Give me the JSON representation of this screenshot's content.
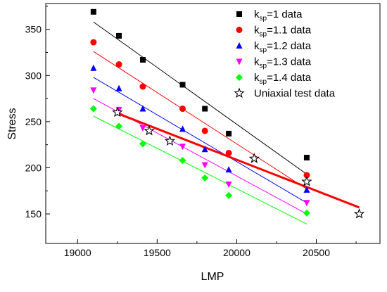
{
  "chart_data": {
    "type": "scatter",
    "xlabel": "LMP",
    "ylabel": "Stress",
    "xlim": [
      18800,
      20900
    ],
    "ylim": [
      118,
      378
    ],
    "xticks": [
      19000,
      19500,
      20000,
      20500
    ],
    "yticks": [
      150,
      200,
      250,
      300,
      350
    ],
    "grid": false,
    "legend_position": "top-right",
    "series": [
      {
        "name": "k_sp=1 data",
        "legend_main": "k",
        "legend_sub": "sp",
        "legend_rest": "=1 data",
        "marker": "square",
        "color": "#000000",
        "x": [
          19100,
          19260,
          19410,
          19660,
          19800,
          19950,
          20440
        ],
        "y": [
          369,
          343,
          317,
          290,
          264,
          237,
          211
        ],
        "fit": {
          "x": [
            19100,
            20440
          ],
          "y": [
            358,
            193
          ]
        }
      },
      {
        "name": "k_sp=1.1 data",
        "legend_main": "k",
        "legend_sub": "sp",
        "legend_rest": "=1.1 data",
        "marker": "circle",
        "color": "#ff0000",
        "x": [
          19100,
          19260,
          19410,
          19660,
          19800,
          19950,
          20440
        ],
        "y": [
          336,
          312,
          288,
          264,
          240,
          216,
          192
        ],
        "fit": {
          "x": [
            19100,
            20440
          ],
          "y": [
            326,
            177
          ]
        }
      },
      {
        "name": "k_sp=1.2 data",
        "legend_main": "k",
        "legend_sub": "sp",
        "legend_rest": "=1.2 data",
        "marker": "triangle-up",
        "color": "#0000ff",
        "x": [
          19100,
          19260,
          19410,
          19660,
          19800,
          19950,
          20440
        ],
        "y": [
          308,
          286,
          264,
          242,
          220,
          198,
          176
        ],
        "fit": {
          "x": [
            19100,
            20440
          ],
          "y": [
            298,
            162
          ]
        }
      },
      {
        "name": "k_sp=1.3 data",
        "legend_main": "k",
        "legend_sub": "sp",
        "legend_rest": "=1.3 data",
        "marker": "triangle-down",
        "color": "#ff00ff",
        "x": [
          19100,
          19260,
          19410,
          19660,
          19800,
          19950,
          20440
        ],
        "y": [
          284,
          263,
          243,
          223,
          203,
          182,
          162
        ],
        "fit": {
          "x": [
            19100,
            20440
          ],
          "y": [
            275,
            150
          ]
        }
      },
      {
        "name": "k_sp=1.4 data",
        "legend_main": "k",
        "legend_sub": "sp",
        "legend_rest": "=1.4 data",
        "marker": "diamond",
        "color": "#00ff00",
        "x": [
          19100,
          19260,
          19410,
          19660,
          19800,
          19950,
          20440
        ],
        "y": [
          264,
          245,
          226,
          208,
          189,
          170,
          151
        ],
        "fit": {
          "x": [
            19100,
            20440
          ],
          "y": [
            256,
            139
          ]
        }
      },
      {
        "name": "Uniaxial test data",
        "legend_main": "Uniaxial test data",
        "legend_sub": "",
        "legend_rest": "",
        "marker": "star",
        "color": "#000000",
        "x": [
          19250,
          19450,
          19580,
          20110,
          20440,
          20770
        ],
        "y": [
          260,
          240,
          229,
          210,
          185,
          150
        ],
        "fit": {
          "x": [
            19250,
            20770
          ],
          "y": [
            259,
            157
          ],
          "color": "#ff0000",
          "thick": true
        }
      }
    ]
  }
}
